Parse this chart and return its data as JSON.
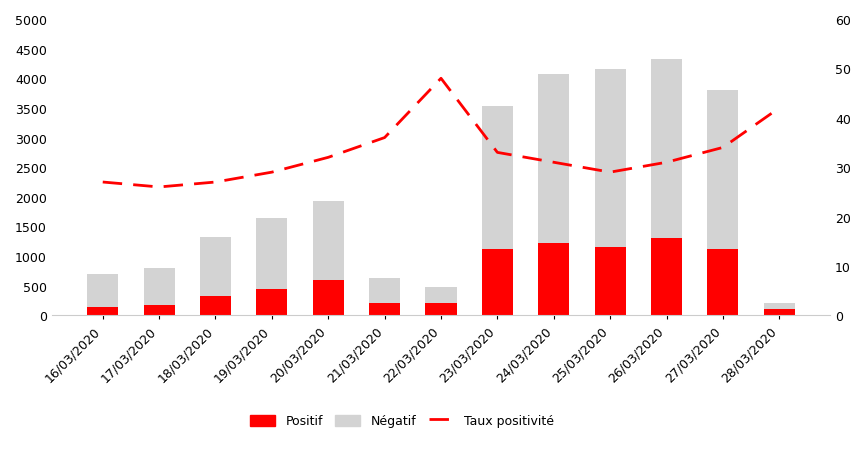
{
  "dates": [
    "16/03/2020",
    "17/03/2020",
    "18/03/2020",
    "19/03/2020",
    "20/03/2020",
    "21/03/2020",
    "22/03/2020",
    "23/03/2020",
    "24/03/2020",
    "25/03/2020",
    "26/03/2020",
    "27/03/2020",
    "28/03/2020"
  ],
  "positif": [
    150,
    175,
    325,
    450,
    600,
    210,
    210,
    1125,
    1225,
    1150,
    1300,
    1125,
    100
  ],
  "total": [
    700,
    800,
    1325,
    1650,
    1925,
    625,
    475,
    3525,
    4075,
    4150,
    4325,
    3800,
    210
  ],
  "taux_positivite": [
    27,
    26,
    27,
    29,
    32,
    36,
    48,
    33,
    31,
    29,
    31,
    34,
    42
  ],
  "bar_color_positif": "#ff0000",
  "bar_color_negatif": "#d3d3d3",
  "line_color": "#ff0000",
  "ylim_left": [
    0,
    5000
  ],
  "ylim_right": [
    0,
    60
  ],
  "yticks_left": [
    0,
    500,
    1000,
    1500,
    2000,
    2500,
    3000,
    3500,
    4000,
    4500,
    5000
  ],
  "yticks_right": [
    0,
    10,
    20,
    30,
    40,
    50,
    60
  ],
  "legend_positif": "Positif",
  "legend_negatif": "Négatif",
  "legend_taux": "Taux positivité",
  "background_color": "#ffffff",
  "tick_label_fontsize": 9,
  "legend_fontsize": 9,
  "bar_width": 0.55
}
